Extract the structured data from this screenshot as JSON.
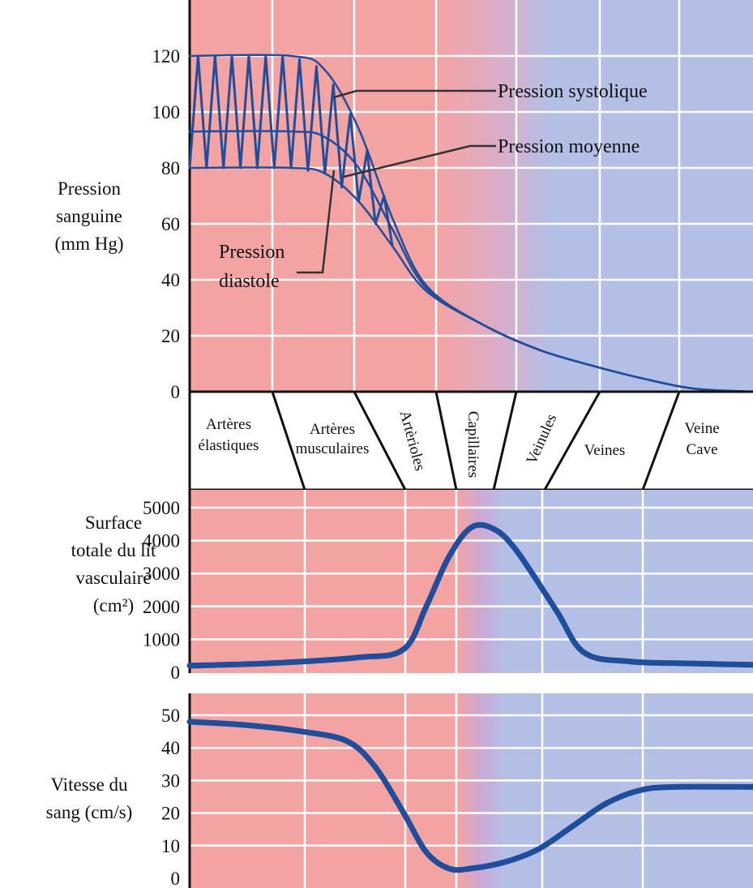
{
  "colors": {
    "arterial": "#f4a3a3",
    "venous": "#b4bfe6",
    "curve": "#1f4e9c",
    "grid": "#ffffff",
    "border": "#111111"
  },
  "chart_data": [
    {
      "type": "line",
      "ylabel": [
        "Pression",
        "sanguine",
        "(mm Hg)"
      ],
      "yticks": [
        "120",
        "100",
        "80",
        "60",
        "40",
        "20",
        "0"
      ],
      "ylim": [
        0,
        140
      ],
      "x_unit": "relative position along vascular tree (0–1)",
      "grid": true,
      "series": [
        {
          "name": "Pression systolique",
          "x": [
            0,
            0.18,
            0.24,
            0.3,
            0.36,
            0.42,
            0.52,
            0.62,
            0.72,
            0.82,
            0.9,
            1.0
          ],
          "y": [
            120,
            120,
            115,
            94,
            62,
            38,
            24,
            15,
            9,
            4,
            1,
            0
          ]
        },
        {
          "name": "Pression moyenne",
          "x": [
            0,
            0.18,
            0.24,
            0.3,
            0.36,
            0.42,
            0.52,
            0.62,
            0.72,
            0.82,
            0.9,
            1.0
          ],
          "y": [
            93,
            93,
            91,
            80,
            58,
            37,
            24,
            15,
            9,
            4,
            1,
            0
          ]
        },
        {
          "name": "Pression diastole",
          "x": [
            0,
            0.18,
            0.24,
            0.3,
            0.36,
            0.42,
            0.52,
            0.62,
            0.72,
            0.82,
            0.9,
            1.0
          ],
          "y": [
            80,
            80,
            78,
            68,
            52,
            36,
            24,
            15,
            9,
            4,
            1,
            0
          ]
        }
      ],
      "annotations": [
        {
          "text": "Pression systolique",
          "target_y": 120
        },
        {
          "text": "Pression moyenne",
          "target_y": 93
        },
        {
          "text": "Pression diastole",
          "target_y": 80
        }
      ]
    },
    {
      "type": "line",
      "ylabel": [
        "Surface",
        "totale du lit",
        "vasculaire",
        "(cm²)"
      ],
      "yticks": [
        "5000",
        "4000",
        "3000",
        "2000",
        "1000",
        "0"
      ],
      "ylim": [
        0,
        5000
      ],
      "grid": true,
      "series": [
        {
          "x": [
            0,
            0.15,
            0.3,
            0.38,
            0.42,
            0.46,
            0.5,
            0.54,
            0.58,
            0.65,
            0.7,
            0.78,
            0.88,
            1.0
          ],
          "y": [
            200,
            280,
            450,
            700,
            2000,
            3500,
            4400,
            4350,
            3700,
            1900,
            600,
            330,
            270,
            230
          ]
        }
      ]
    },
    {
      "type": "line",
      "ylabel": [
        "Vitesse du",
        "sang (cm/s)"
      ],
      "yticks": [
        "50",
        "40",
        "30",
        "20",
        "10",
        "0"
      ],
      "ylim": [
        0,
        55
      ],
      "grid": true,
      "series": [
        {
          "x": [
            0,
            0.1,
            0.2,
            0.28,
            0.33,
            0.38,
            0.42,
            0.46,
            0.5,
            0.56,
            0.62,
            0.68,
            0.74,
            0.8,
            0.86,
            1.0
          ],
          "y": [
            48,
            47,
            45,
            42,
            34,
            20,
            8,
            3,
            3,
            5,
            9,
            16,
            23,
            27,
            28,
            28
          ]
        }
      ]
    }
  ],
  "segments": [
    {
      "label": [
        "Artères",
        "élastiques"
      ]
    },
    {
      "label": [
        "Artères",
        "musculaires"
      ]
    },
    {
      "label": [
        "Artèrioles"
      ]
    },
    {
      "label": [
        "Capillaires"
      ]
    },
    {
      "label": [
        "Veinules"
      ]
    },
    {
      "label": [
        "Veines"
      ]
    },
    {
      "label": [
        "Veine",
        "Cave"
      ]
    }
  ]
}
